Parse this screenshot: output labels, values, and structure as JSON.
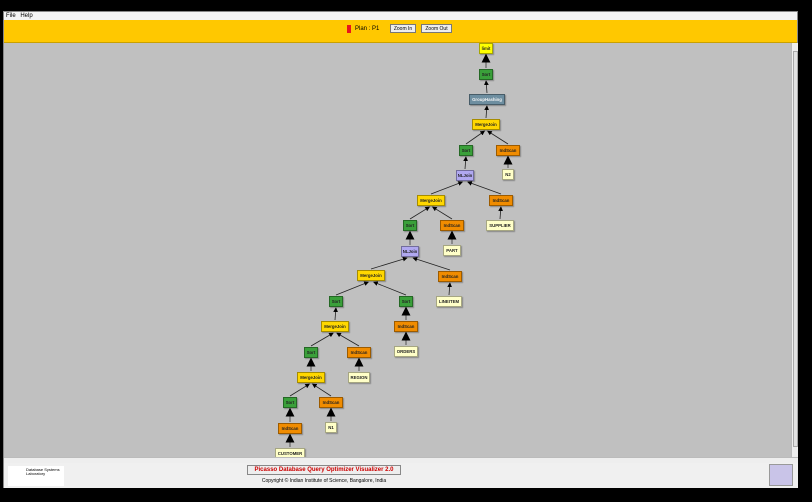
{
  "menu": [
    "File",
    "Help"
  ],
  "toolbar": {
    "plan_label": "Plan : P1",
    "zoom_in": "Zoom In",
    "zoom_out": "Zoom Out",
    "plan_color": "#e8141c"
  },
  "footer": {
    "title": "Picasso Database Query Optimizer Visualizer 2.0",
    "copyright": "Copyright © Indian Institute of Science, Bangalore, India",
    "logo_text": "Database Systems Laboratory"
  },
  "colors": {
    "toolbar": "#ffc800",
    "canvas": "#c0c0c0",
    "join": "#ffd700",
    "sort": "#3aa03a",
    "scan": "#f08c00",
    "relation": "#ffffc8",
    "hash": "#6d8ea0",
    "nljoin": "#b0a8f0",
    "limit": "#ffff00"
  },
  "plan_tree": [
    {
      "label": "limit",
      "kind": "limit"
    },
    {
      "label": "Sort",
      "kind": "sort",
      "parent": 0
    },
    {
      "label": "GroupHashing",
      "kind": "hash",
      "parent": 1
    },
    {
      "label": "MergeJoin",
      "kind": "join",
      "parent": 2
    },
    {
      "label": "Sort",
      "kind": "sort",
      "parent": 3
    },
    {
      "label": "IndScan",
      "kind": "scan",
      "parent": 3
    },
    {
      "label": "N2",
      "kind": "relation",
      "parent": 5
    },
    {
      "label": "NLJoin",
      "kind": "nljoin",
      "parent": 4
    },
    {
      "label": "MergeJoin",
      "kind": "join",
      "parent": 7
    },
    {
      "label": "IndScan",
      "kind": "scan",
      "parent": 7
    },
    {
      "label": "SUPPLIER",
      "kind": "relation",
      "parent": 9
    },
    {
      "label": "Sort",
      "kind": "sort",
      "parent": 8
    },
    {
      "label": "IndScan",
      "kind": "scan",
      "parent": 8
    },
    {
      "label": "PART",
      "kind": "relation",
      "parent": 12
    },
    {
      "label": "NLJoin",
      "kind": "nljoin",
      "parent": 11
    },
    {
      "label": "MergeJoin",
      "kind": "join",
      "parent": 14
    },
    {
      "label": "IndScan",
      "kind": "scan",
      "parent": 14
    },
    {
      "label": "LINEITEM",
      "kind": "relation",
      "parent": 16
    },
    {
      "label": "Sort",
      "kind": "sort",
      "parent": 15
    },
    {
      "label": "Sort",
      "kind": "sort",
      "parent": 15
    },
    {
      "label": "IndScan",
      "kind": "scan",
      "parent": 19
    },
    {
      "label": "ORDERS",
      "kind": "relation",
      "parent": 20
    },
    {
      "label": "MergeJoin",
      "kind": "join",
      "parent": 18
    },
    {
      "label": "Sort",
      "kind": "sort",
      "parent": 22
    },
    {
      "label": "IndScan",
      "kind": "scan",
      "parent": 22
    },
    {
      "label": "REGION",
      "kind": "relation",
      "parent": 24
    },
    {
      "label": "MergeJoin",
      "kind": "join",
      "parent": 23
    },
    {
      "label": "Sort",
      "kind": "sort",
      "parent": 26
    },
    {
      "label": "IndScan",
      "kind": "scan",
      "parent": 26
    },
    {
      "label": "N1",
      "kind": "relation",
      "parent": 28
    },
    {
      "label": "IndScan",
      "kind": "scan",
      "parent": 27
    },
    {
      "label": "CUSTOMER",
      "kind": "relation",
      "parent": 30
    }
  ]
}
